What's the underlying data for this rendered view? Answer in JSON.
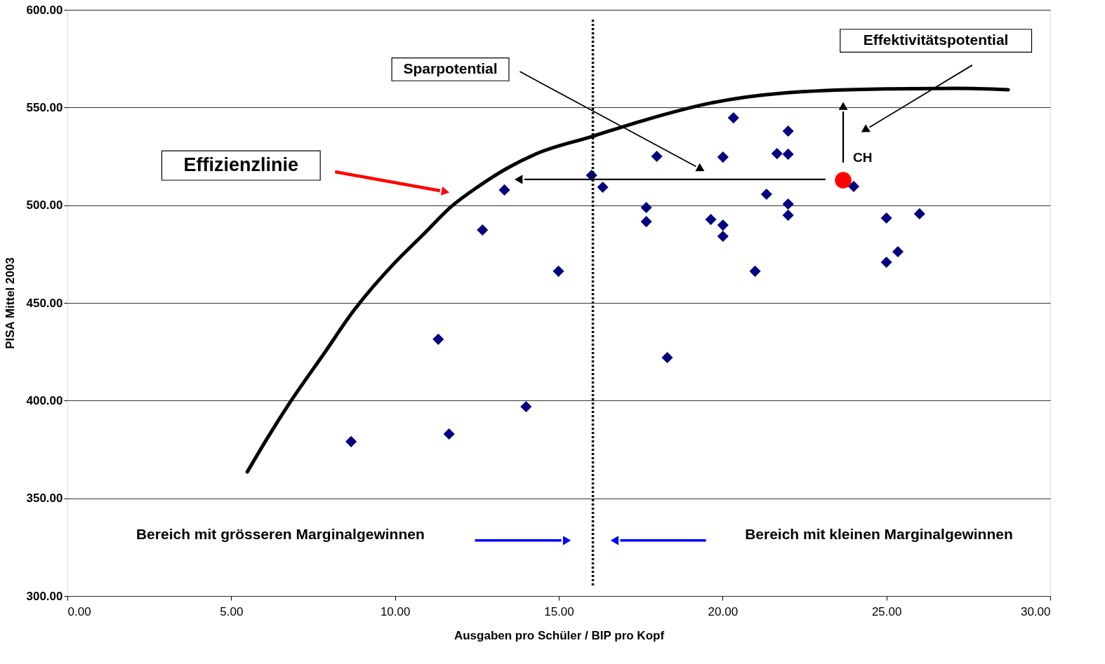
{
  "chart_data": {
    "type": "scatter",
    "xlabel": "Ausgaben pro Schüler / BIP pro Kopf",
    "ylabel": "PISA Mittel 2003",
    "xlim": [
      0,
      30
    ],
    "ylim": [
      300,
      600
    ],
    "xticks": [
      {
        "value": 0,
        "label": "0.00"
      },
      {
        "value": 5,
        "label": "5.00"
      },
      {
        "value": 10,
        "label": "10.00"
      },
      {
        "value": 15,
        "label": "15.00"
      },
      {
        "value": 20,
        "label": "20.00"
      },
      {
        "value": 25,
        "label": "25.00"
      },
      {
        "value": 30,
        "label": "30.00"
      }
    ],
    "yticks": [
      {
        "value": 300,
        "label": "300.00"
      },
      {
        "value": 350,
        "label": "350.00"
      },
      {
        "value": 400,
        "label": "400.00"
      },
      {
        "value": 450,
        "label": "450.00"
      },
      {
        "value": 500,
        "label": "500.00"
      },
      {
        "value": 550,
        "label": "550.00"
      },
      {
        "value": 600,
        "label": "600.00"
      }
    ],
    "grid": "y",
    "legend": false,
    "series": [
      {
        "type": "line",
        "color": "#000000",
        "marker": "none",
        "line_style": "solid",
        "x": [
          5.49,
          6.13,
          6.78,
          7.85,
          8.71,
          9.99,
          10.85,
          11.71,
          12.57,
          13.42,
          14.28,
          16.0,
          17.71,
          19.64,
          21.79,
          25.0,
          27.15,
          28.72
        ],
        "values": [
          363.5,
          381.5,
          398.7,
          424.5,
          445.4,
          470.5,
          484.8,
          499.2,
          509.9,
          518.9,
          526.1,
          535.1,
          544.0,
          552.3,
          557.3,
          559.5,
          559.8,
          559.1
        ]
      },
      {
        "type": "scatter",
        "color": "#000080",
        "marker": "diamond",
        "x": [
          8.66,
          11.32,
          11.65,
          12.67,
          13.34,
          14.0,
          14.99,
          16.0,
          16.34,
          17.67,
          17.67,
          17.99,
          18.31,
          19.64,
          20.01,
          20.01,
          20.01,
          20.33,
          20.99,
          21.34,
          21.66,
          22.0,
          22.0,
          22.0,
          22.0,
          24.0,
          25.0,
          25.0,
          25.35,
          26.01
        ],
        "values": [
          379,
          431.4,
          382.9,
          487.3,
          507.8,
          396.9,
          466.2,
          515.3,
          509.2,
          498.8,
          491.6,
          525.0,
          422.0,
          492.7,
          489.8,
          484.1,
          524.6,
          544.7,
          466.2,
          505.6,
          526.4,
          526.1,
          537.9,
          500.6,
          494.9,
          509.6,
          493.4,
          470.8,
          476.2,
          495.6
        ]
      },
      {
        "type": "scatter",
        "name": "CH",
        "color": "#ff0000",
        "marker": "circle",
        "x": [
          23.68
        ],
        "values": [
          512.8
        ]
      }
    ],
    "ref_lines": [
      {
        "axis": "x",
        "value": 16.04,
        "color": "#000000",
        "line_style": "dotted"
      }
    ],
    "annotations": [
      "Effizienzlinie",
      "Sparpotential",
      "Effektivitätspotential",
      "Bereich mit grösseren Marginalgewinnen",
      "Bereich mit kleinen Marginalgewinnen"
    ]
  }
}
